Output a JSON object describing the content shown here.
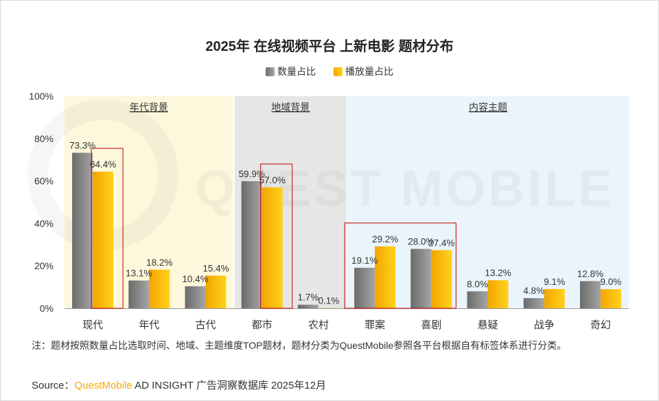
{
  "chart_data": {
    "type": "bar",
    "title": "2025年 在线视频平台 上新电影 题材分布",
    "categories": [
      "现代",
      "年代",
      "古代",
      "都市",
      "农村",
      "罪案",
      "喜剧",
      "悬疑",
      "战争",
      "奇幻"
    ],
    "series": [
      {
        "name": "数量占比",
        "values": [
          73.3,
          13.1,
          10.4,
          59.9,
          1.7,
          19.1,
          28.0,
          8.0,
          4.8,
          12.8
        ],
        "labels": [
          "73.3%",
          "13.1%",
          "10.4%",
          "59.9%",
          "1.7%",
          "19.1%",
          "28.0%",
          "8.0%",
          "4.8%",
          "12.8%"
        ],
        "color": "#8a8a8a"
      },
      {
        "name": "播放量占比",
        "values": [
          64.4,
          18.2,
          15.4,
          57.0,
          0.1,
          29.2,
          27.4,
          13.2,
          9.1,
          9.0
        ],
        "labels": [
          "64.4%",
          "18.2%",
          "15.4%",
          "57.0%",
          "0.1%",
          "29.2%",
          "27.4%",
          "13.2%",
          "9.1%",
          "9.0%"
        ],
        "color": "#f9b800"
      }
    ],
    "yticks": [
      "0%",
      "20%",
      "40%",
      "60%",
      "80%",
      "100%"
    ],
    "ylim": [
      0,
      100
    ],
    "groups": [
      {
        "label": "年代背景",
        "start": 0,
        "end": 2,
        "color": "#fdf7dc"
      },
      {
        "label": "地域背景",
        "start": 3,
        "end": 4,
        "color": "#e6e6e6"
      },
      {
        "label": "内容主题",
        "start": 5,
        "end": 9,
        "color": "#eaf4fb"
      }
    ],
    "highlights": [
      [
        0,
        0
      ],
      [
        3,
        3
      ],
      [
        5,
        6
      ]
    ],
    "legend_position": "top-center",
    "grid": false
  },
  "watermark": "QUEST MOBILE",
  "note": "注：题材按照数量占比选取时间、地域、主题维度TOP题材，题材分类为QuestMobile参照各平台根据自有标签体系进行分类。",
  "source": {
    "prefix": "Source：",
    "brand": "QuestMobile",
    "rest": " AD INSIGHT 广告洞察数据库 2025年12月"
  }
}
